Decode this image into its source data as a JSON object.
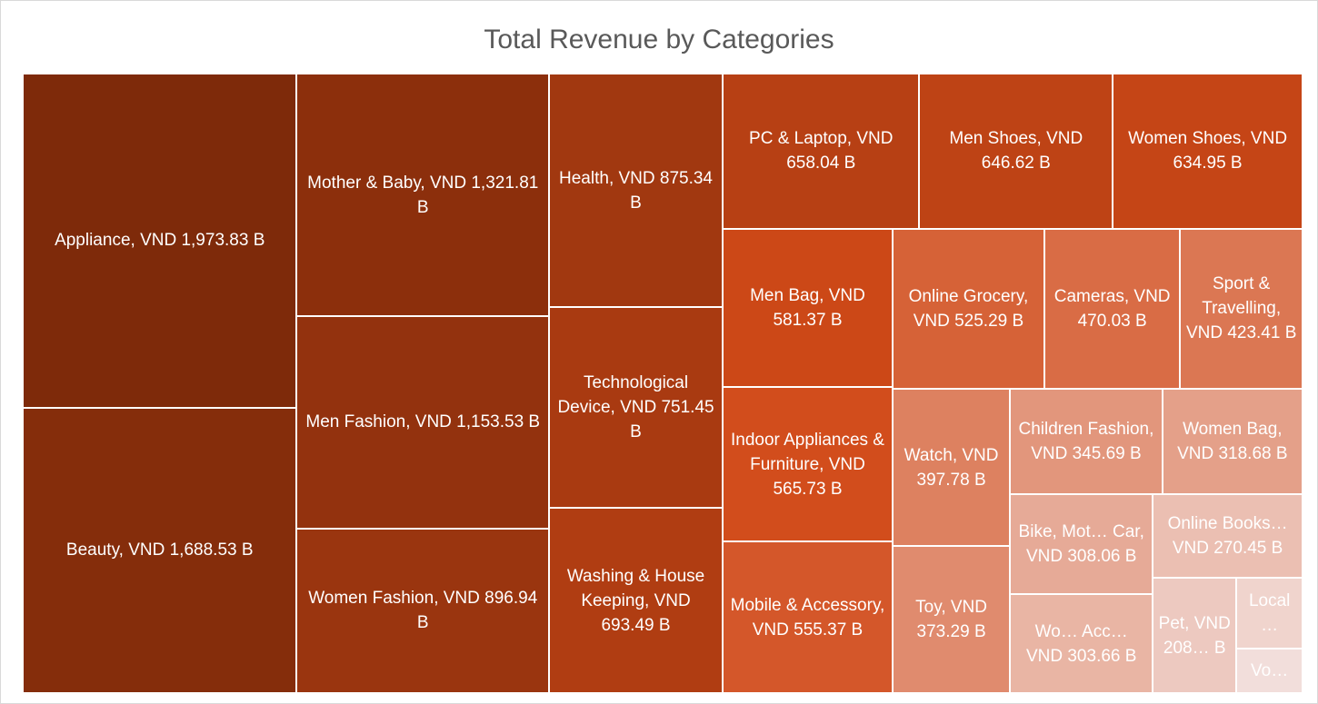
{
  "chart_data": {
    "type": "treemap",
    "title": "Total Revenue by Categories",
    "labels": [
      "Appliance, VND 1,973.83 B",
      "Beauty, VND 1,688.53 B",
      "Mother & Baby, VND 1,321.81 B",
      "Men Fashion, VND 1,153.53 B",
      "Women Fashion, VND 896.94 B",
      "Health, VND 875.34 B",
      "Technological Device, VND 751.45 B",
      "Washing & House Keeping, VND 693.49 B",
      "PC & Laptop, VND 658.04 B",
      "Men Shoes, VND 646.62 B",
      "Women Shoes, VND 634.95 B",
      "Men Bag, VND 581.37 B",
      "Indoor Appliances & Furniture, VND 565.73 B",
      "Mobile & Accessory, VND 555.37 B",
      "Online Grocery, VND 525.29 B",
      "Cameras, VND 470.03 B",
      "Sport & Travelling, VND 423.41 B",
      "Watch, VND 397.78 B",
      "Toy, VND 373.29 B",
      "Children Fashion, VND 345.69 B",
      "Women Bag, VND 318.68 B",
      "Bike, Mot… Car, VND 308.06 B",
      "Wo… Acc… VND 303.66 B",
      "Online Books… VND 270.45 B",
      "Pet, VND 208… B",
      "Local…",
      "Vo…"
    ],
    "values": [
      1973.83,
      1688.53,
      1321.81,
      1153.53,
      896.94,
      875.34,
      751.45,
      693.49,
      658.04,
      646.62,
      634.95,
      581.37,
      565.73,
      555.37,
      525.29,
      470.03,
      423.41,
      397.78,
      373.29,
      345.69,
      318.68,
      308.06,
      303.66,
      270.45,
      208,
      100,
      64
    ],
    "color_scale": [
      "#7e2a0a",
      "#d14a18",
      "#f2dedb"
    ]
  }
}
